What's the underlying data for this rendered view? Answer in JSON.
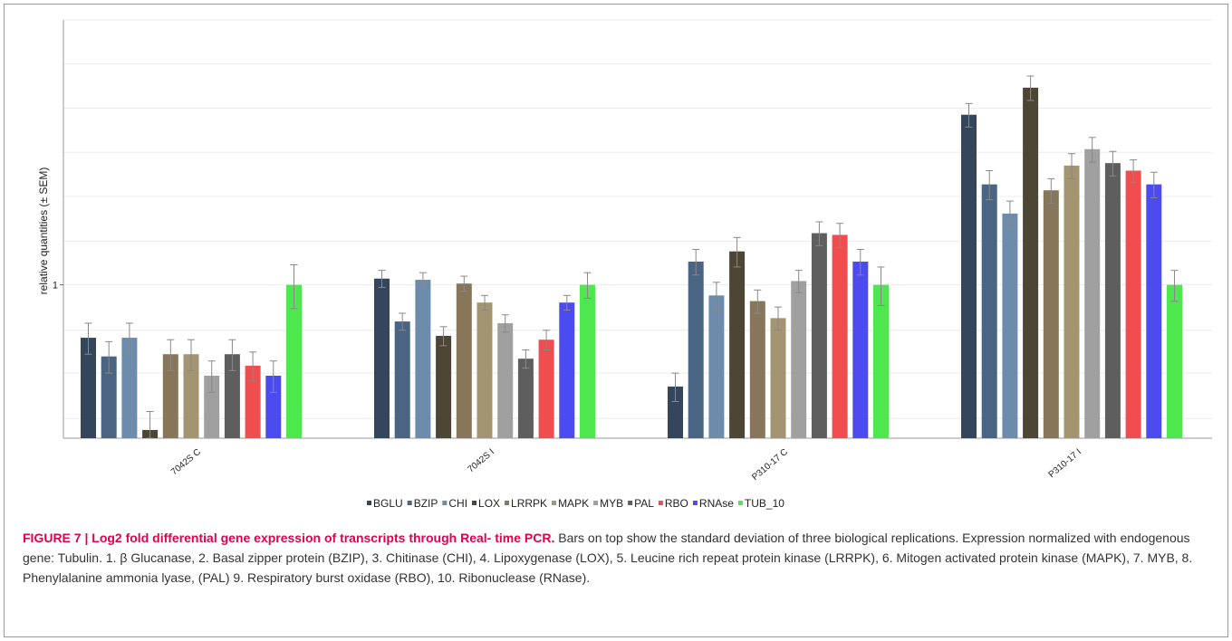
{
  "chart_data": {
    "type": "bar",
    "ylabel": "relative quantities (± SEM)",
    "yscale": "log2",
    "ylim": [
      0.3,
      8
    ],
    "yticks": [
      1
    ],
    "grid": true,
    "legend_position": "bottom",
    "categories": [
      "7042S C",
      "7042S I",
      "P310-17 C",
      "P310-17 I"
    ],
    "series": [
      {
        "name": "BGLU",
        "color": "#34465c",
        "values": [
          0.66,
          1.05,
          0.45,
          3.8
        ],
        "errors": [
          0.08,
          0.07,
          0.05,
          0.35
        ]
      },
      {
        "name": "BZIP",
        "color": "#4a6584",
        "values": [
          0.57,
          0.75,
          1.2,
          2.2
        ],
        "errors": [
          0.07,
          0.05,
          0.12,
          0.25
        ]
      },
      {
        "name": "CHI",
        "color": "#6d8cab",
        "values": [
          0.66,
          1.04,
          0.92,
          1.75
        ],
        "errors": [
          0.08,
          0.06,
          0.1,
          0.18
        ]
      },
      {
        "name": "LOX",
        "color": "#4e4634",
        "values": [
          0.32,
          0.67,
          1.3,
          4.7
        ],
        "errors": [
          0.05,
          0.05,
          0.15,
          0.45
        ]
      },
      {
        "name": "LRRPK",
        "color": "#87765a",
        "values": [
          0.58,
          1.01,
          0.88,
          2.1
        ],
        "errors": [
          0.07,
          0.06,
          0.08,
          0.2
        ]
      },
      {
        "name": "MAPK",
        "color": "#a39472",
        "values": [
          0.58,
          0.87,
          0.77,
          2.55
        ],
        "errors": [
          0.07,
          0.05,
          0.07,
          0.25
        ]
      },
      {
        "name": "MYB",
        "color": "#a0a0a0",
        "values": [
          0.49,
          0.74,
          1.03,
          2.9
        ],
        "errors": [
          0.06,
          0.05,
          0.09,
          0.28
        ]
      },
      {
        "name": "PAL",
        "color": "#5e5e5e",
        "values": [
          0.58,
          0.56,
          1.5,
          2.6
        ],
        "errors": [
          0.07,
          0.04,
          0.14,
          0.25
        ]
      },
      {
        "name": "RBO",
        "color": "#f04e4e",
        "values": [
          0.53,
          0.65,
          1.48,
          2.45
        ],
        "errors": [
          0.06,
          0.05,
          0.14,
          0.22
        ]
      },
      {
        "name": "RNAse",
        "color": "#4b4bf0",
        "values": [
          0.49,
          0.87,
          1.2,
          2.2
        ],
        "errors": [
          0.06,
          0.05,
          0.12,
          0.22
        ]
      },
      {
        "name": "TUB_10",
        "color": "#4ee84e",
        "values": [
          1.0,
          1.0,
          1.0,
          1.0
        ],
        "errors": [
          0.17,
          0.1,
          0.15,
          0.12
        ]
      }
    ]
  },
  "caption": {
    "title": "FIGURE 7 | Log2 fold differential gene expression of transcripts through Real- time PCR.",
    "body": " Bars on top show the standard deviation of three biological replications. Expression normalized with endogenous gene: Tubulin. 1. β Glucanase, 2. Basal zipper protein (BZIP), 3. Chitinase (CHI), 4. Lipoxygenase (LOX), 5. Leucine rich repeat protein kinase (LRRPK), 6. Mitogen activated protein kinase (MAPK), 7. MYB, 8. Phenylalanine ammonia lyase, (PAL) 9. Respiratory burst oxidase (RBO), 10. Ribonuclease (RNase)."
  }
}
